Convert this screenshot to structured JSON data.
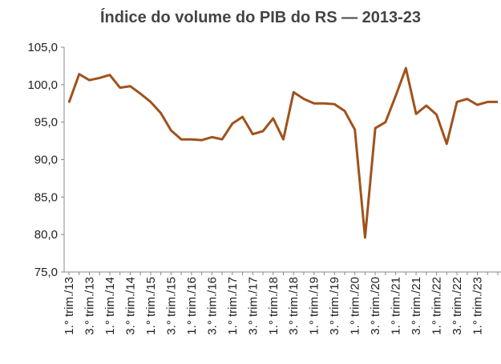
{
  "chart_data": {
    "type": "line",
    "title": "Índice do volume do PIB do RS — 2013-23",
    "categories": [
      "1.° trim./13",
      null,
      "3.° trim./13",
      null,
      "1.° trim./14",
      null,
      "3.° trim./14",
      null,
      "1.° trim./15",
      null,
      "3.° trim./15",
      null,
      "1.° trim./16",
      null,
      "3.° trim./16",
      null,
      "1.° trim./17",
      null,
      "3.° trim./17",
      null,
      "1.° trim./18",
      null,
      "3.° trim./18",
      null,
      "1.° trim./19",
      null,
      "3.° trim./19",
      null,
      "1.° trim./20",
      null,
      "3.° trim./20",
      null,
      "1.° trim./21",
      null,
      "3.° trim./21",
      null,
      "1.° trim./22",
      null,
      "3.° trim./22",
      null,
      "1.° trim./23",
      null,
      null
    ],
    "values": [
      97.6,
      101.4,
      100.6,
      100.9,
      101.3,
      99.6,
      99.8,
      98.8,
      97.7,
      96.2,
      93.9,
      92.7,
      92.7,
      92.6,
      93.0,
      92.7,
      94.8,
      95.7,
      93.4,
      93.8,
      95.5,
      92.7,
      99.0,
      98.1,
      97.5,
      97.5,
      97.4,
      96.5,
      94.0,
      79.6,
      94.2,
      95.0,
      98.5,
      102.2,
      96.1,
      97.2,
      96.0,
      92.1,
      97.7,
      98.1,
      97.3,
      97.7,
      97.7
    ],
    "color": "#a0521c",
    "ylim": [
      75,
      105
    ],
    "yticks": [
      {
        "value": 75,
        "label": "75,0"
      },
      {
        "value": 80,
        "label": "80,0"
      },
      {
        "value": 85,
        "label": "85,0"
      },
      {
        "value": 90,
        "label": "90,0"
      },
      {
        "value": 95,
        "label": "95,0"
      },
      {
        "value": 100,
        "label": "100,0"
      },
      {
        "value": 105,
        "label": "105,0"
      }
    ]
  }
}
